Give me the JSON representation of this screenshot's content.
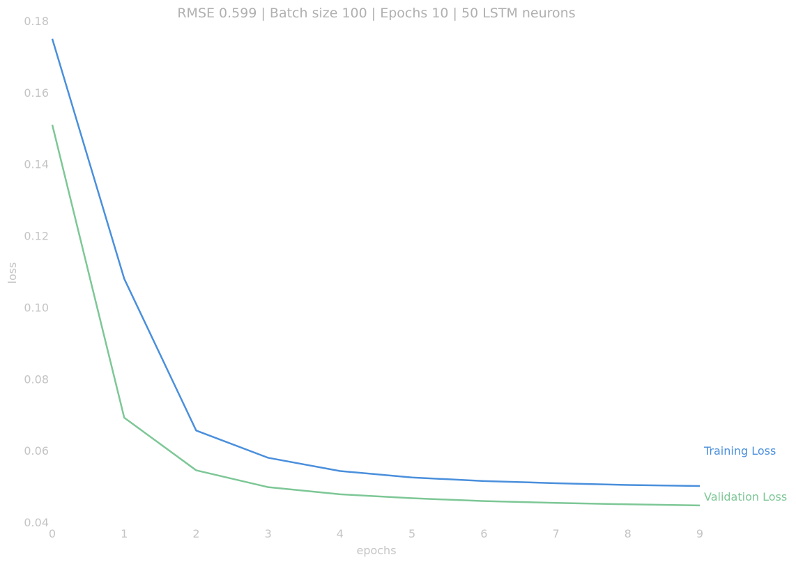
{
  "chart_data": {
    "type": "line",
    "title": "RMSE 0.599 | Batch size 100 | Epochs 10 |  50 LSTM neurons",
    "xlabel": "epochs",
    "ylabel": "loss",
    "x": [
      0,
      1,
      2,
      3,
      4,
      5,
      6,
      7,
      8,
      9
    ],
    "xticks": [
      "0",
      "1",
      "2",
      "3",
      "4",
      "5",
      "6",
      "7",
      "8",
      "9"
    ],
    "yticks": [
      "0.04",
      "0.06",
      "0.08",
      "0.10",
      "0.12",
      "0.14",
      "0.16",
      "0.18"
    ],
    "ylim": [
      0.04,
      0.18
    ],
    "xlim": [
      0,
      9
    ],
    "grid": false,
    "legend": "inline labels at line ends (right)",
    "series": [
      {
        "name": "Training Loss",
        "color": "#4a8fdc",
        "values": [
          0.175,
          0.108,
          0.0656,
          0.058,
          0.0543,
          0.0525,
          0.0515,
          0.0509,
          0.0504,
          0.0501
        ]
      },
      {
        "name": "Validation Loss",
        "color": "#7dc796",
        "values": [
          0.151,
          0.0692,
          0.0545,
          0.0498,
          0.0478,
          0.0467,
          0.0459,
          0.0454,
          0.045,
          0.0447
        ]
      }
    ]
  }
}
